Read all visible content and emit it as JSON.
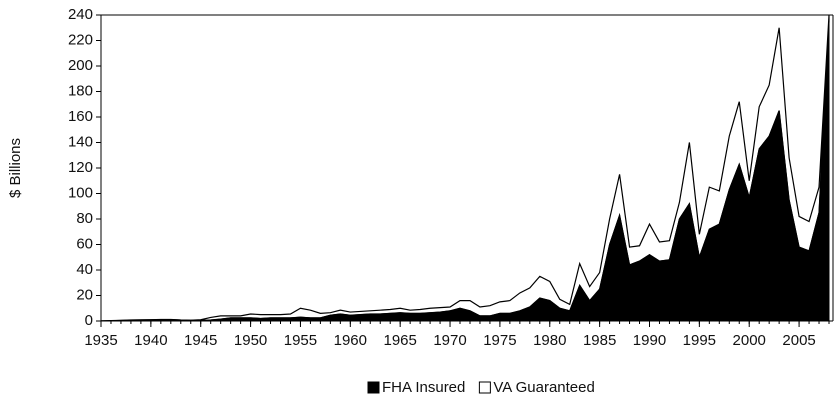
{
  "chart_data": {
    "type": "stacked_area",
    "y_label": "$ Billions",
    "x": [
      1935,
      1936,
      1937,
      1938,
      1939,
      1940,
      1941,
      1942,
      1943,
      1944,
      1945,
      1946,
      1947,
      1948,
      1949,
      1950,
      1951,
      1952,
      1953,
      1954,
      1955,
      1956,
      1957,
      1958,
      1959,
      1960,
      1961,
      1962,
      1963,
      1964,
      1965,
      1966,
      1967,
      1968,
      1969,
      1970,
      1971,
      1972,
      1973,
      1974,
      1975,
      1976,
      1977,
      1978,
      1979,
      1980,
      1981,
      1982,
      1983,
      1984,
      1985,
      1986,
      1987,
      1988,
      1989,
      1990,
      1991,
      1992,
      1993,
      1994,
      1995,
      1996,
      1997,
      1998,
      1999,
      2000,
      2001,
      2002,
      2003,
      2004,
      2005,
      2006,
      2007,
      2008
    ],
    "series": [
      {
        "name": "FHA Insured",
        "color": "#000000",
        "values": [
          0.1,
          0.3,
          0.5,
          0.8,
          0.9,
          1,
          1.2,
          1.2,
          0.8,
          0.6,
          0.5,
          0.8,
          1.5,
          2.5,
          2.5,
          2.5,
          2,
          2.5,
          2.5,
          2.5,
          3,
          2.5,
          2.5,
          4.5,
          5.5,
          4.5,
          5,
          5.5,
          5.5,
          6,
          6.5,
          6,
          6,
          6.5,
          7,
          8,
          10,
          8,
          4,
          4,
          6,
          6,
          8,
          11,
          18,
          16,
          10,
          8,
          28,
          16,
          25,
          60,
          83,
          44,
          47,
          52,
          47,
          48,
          80,
          92,
          50,
          72,
          76,
          103,
          123,
          97,
          135,
          145,
          165,
          95,
          58,
          55,
          85,
          235
        ]
      },
      {
        "name": "VA Guaranteed",
        "color": "#ffffff",
        "values": [
          0,
          0,
          0,
          0,
          0,
          0,
          0,
          0,
          0,
          0,
          0.5,
          2,
          2.5,
          1.5,
          1.5,
          3,
          3,
          2.5,
          2.5,
          3,
          7,
          6,
          3.5,
          2,
          3,
          2.5,
          2.5,
          2.5,
          3,
          3,
          3.5,
          2.5,
          3,
          3.5,
          3.5,
          3,
          6,
          8,
          7,
          8,
          9,
          10,
          14,
          15,
          17,
          15,
          7,
          5,
          17,
          11,
          13,
          20,
          32,
          14,
          12,
          24,
          15,
          15,
          13,
          48,
          18,
          33,
          26,
          42,
          49,
          13,
          33,
          40,
          65,
          33,
          24,
          23,
          20,
          5
        ]
      }
    ],
    "xlim": [
      1935,
      2008
    ],
    "xticks": [
      1935,
      1940,
      1945,
      1950,
      1955,
      1960,
      1965,
      1970,
      1975,
      1980,
      1985,
      1990,
      1995,
      2000,
      2005
    ],
    "ylim": [
      0,
      240
    ],
    "yticks": [
      0,
      20,
      40,
      60,
      80,
      100,
      120,
      140,
      160,
      180,
      200,
      220,
      240
    ],
    "legend": "bottom"
  }
}
